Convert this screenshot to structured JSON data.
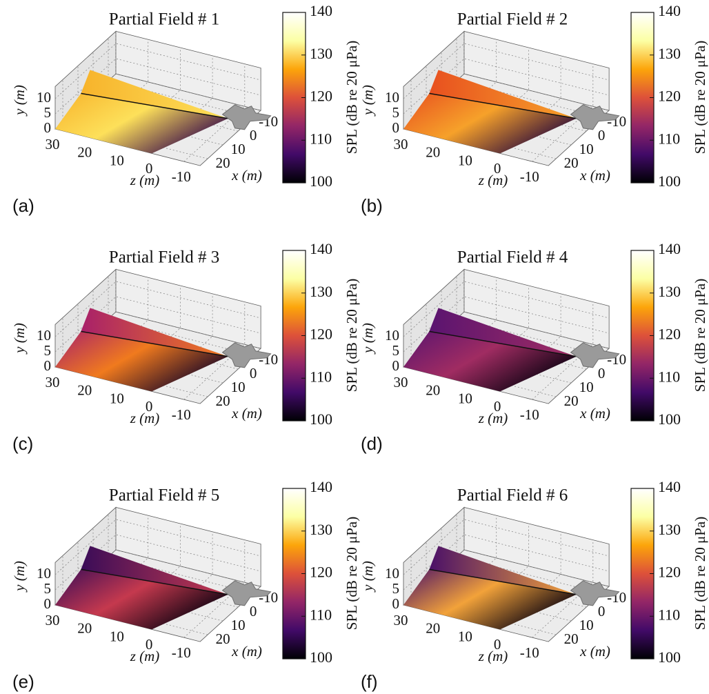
{
  "chart_data": [
    {
      "type": "surface",
      "title": "Partial Field # 1",
      "panel_label": "(a)",
      "xlabel": "x (m)",
      "ylabel": "y (m)",
      "zlabel": "z (m)",
      "xticks": [
        -10,
        0,
        10,
        20
      ],
      "yticks": [
        0,
        5,
        10
      ],
      "zticks": [
        30,
        20,
        10,
        0,
        -10
      ],
      "surface_colors": [
        "#f7b32b",
        "#fde05a",
        "#3a0d4a"
      ],
      "colorbar": {
        "label": "SPL (dB re 20 μPa)",
        "lim": [
          100,
          140
        ],
        "ticks": [
          100,
          110,
          120,
          130,
          140
        ],
        "colors": [
          "#000004",
          "#420a68",
          "#932667",
          "#dd513a",
          "#fca50a",
          "#fcffa4",
          "#ffffff"
        ]
      }
    },
    {
      "type": "surface",
      "title": "Partial Field # 2",
      "panel_label": "(b)",
      "xlabel": "x (m)",
      "ylabel": "y (m)",
      "zlabel": "z (m)",
      "xticks": [
        -10,
        0,
        10,
        20
      ],
      "yticks": [
        0,
        5,
        10
      ],
      "zticks": [
        30,
        20,
        10,
        0,
        -10
      ],
      "surface_colors": [
        "#e8501f",
        "#f6a12a",
        "#2a0a3c"
      ],
      "colorbar": {
        "label": "SPL (dB re 20 μPa)",
        "lim": [
          100,
          140
        ],
        "ticks": [
          100,
          110,
          120,
          130,
          140
        ],
        "colors": [
          "#000004",
          "#420a68",
          "#932667",
          "#dd513a",
          "#fca50a",
          "#fcffa4",
          "#ffffff"
        ]
      }
    },
    {
      "type": "surface",
      "title": "Partial Field # 3",
      "panel_label": "(c)",
      "xlabel": "x (m)",
      "ylabel": "y (m)",
      "zlabel": "z (m)",
      "xticks": [
        -10,
        0,
        10,
        20
      ],
      "yticks": [
        0,
        5,
        10
      ],
      "zticks": [
        30,
        20,
        10,
        0,
        -10
      ],
      "surface_colors": [
        "#a8206a",
        "#f07a1e",
        "#1a0626"
      ],
      "colorbar": {
        "label": "SPL (dB re 20 μPa)",
        "lim": [
          100,
          140
        ],
        "ticks": [
          100,
          110,
          120,
          130,
          140
        ],
        "colors": [
          "#000004",
          "#420a68",
          "#932667",
          "#dd513a",
          "#fca50a",
          "#fcffa4",
          "#ffffff"
        ]
      }
    },
    {
      "type": "surface",
      "title": "Partial Field # 4",
      "panel_label": "(d)",
      "xlabel": "x (m)",
      "ylabel": "y (m)",
      "zlabel": "z (m)",
      "xticks": [
        -10,
        0,
        10,
        20
      ],
      "yticks": [
        0,
        5,
        10
      ],
      "zticks": [
        30,
        20,
        10,
        0,
        -10
      ],
      "surface_colors": [
        "#5a1470",
        "#a02c62",
        "#0a0210"
      ],
      "colorbar": {
        "label": "SPL (dB re 20 μPa)",
        "lim": [
          100,
          140
        ],
        "ticks": [
          100,
          110,
          120,
          130,
          140
        ],
        "colors": [
          "#000004",
          "#420a68",
          "#932667",
          "#dd513a",
          "#fca50a",
          "#fcffa4",
          "#ffffff"
        ]
      }
    },
    {
      "type": "surface",
      "title": "Partial Field # 5",
      "panel_label": "(e)",
      "xlabel": "x (m)",
      "ylabel": "y (m)",
      "zlabel": "z (m)",
      "xticks": [
        -10,
        0,
        10,
        20
      ],
      "yticks": [
        0,
        5,
        10
      ],
      "zticks": [
        30,
        20,
        10,
        0,
        -10
      ],
      "surface_colors": [
        "#3a0c58",
        "#c5394e",
        "#0a0210"
      ],
      "colorbar": {
        "label": "SPL (dB re 20 μPa)",
        "lim": [
          100,
          140
        ],
        "ticks": [
          100,
          110,
          120,
          130,
          140
        ],
        "colors": [
          "#000004",
          "#420a68",
          "#932667",
          "#dd513a",
          "#fca50a",
          "#fcffa4",
          "#ffffff"
        ]
      }
    },
    {
      "type": "surface",
      "title": "Partial Field # 6",
      "panel_label": "(f)",
      "xlabel": "x (m)",
      "ylabel": "y (m)",
      "zlabel": "z (m)",
      "xticks": [
        -10,
        0,
        10,
        20
      ],
      "yticks": [
        0,
        5,
        10
      ],
      "zticks": [
        30,
        20,
        10,
        0,
        -10
      ],
      "surface_colors": [
        "#4a1068",
        "#f2a23a",
        "#0a0210"
      ],
      "colorbar": {
        "label": "SPL (dB re 20 μPa)",
        "lim": [
          100,
          140
        ],
        "ticks": [
          100,
          110,
          120,
          130,
          140
        ],
        "colors": [
          "#000004",
          "#420a68",
          "#932667",
          "#dd513a",
          "#fca50a",
          "#fcffa4",
          "#ffffff"
        ]
      }
    }
  ]
}
